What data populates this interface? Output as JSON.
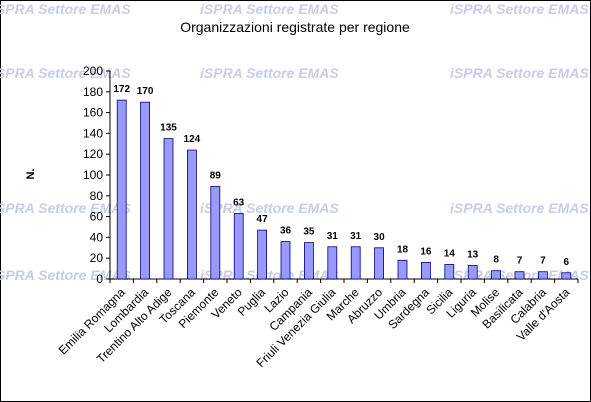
{
  "watermark": "iSPRA Settore EMAS",
  "colors": {
    "bar_fill": "#9999ff",
    "bar_stroke": "#000080",
    "axis": "#000000",
    "watermark": "#c7cde6"
  },
  "chart_data": {
    "type": "bar",
    "title": "Organizzazioni registrate per regione",
    "xlabel": "",
    "ylabel": "N.",
    "ylim": [
      0,
      200
    ],
    "yticks": [
      0,
      20,
      40,
      60,
      80,
      100,
      120,
      140,
      160,
      180,
      200
    ],
    "grid": false,
    "categories": [
      "Emilia Romagna",
      "Lombardia",
      "Trentino Alto Adige",
      "Toscana",
      "Piemonte",
      "Veneto",
      "Puglia",
      "Lazio",
      "Campania",
      "Friuli Venezia Giulia",
      "Marche",
      "Abruzzo",
      "Umbria",
      "Sardegna",
      "Sicilia",
      "Liguria",
      "Molise",
      "Basilicata",
      "Calabria",
      "Valle d'Aosta"
    ],
    "values": [
      172,
      170,
      135,
      124,
      89,
      63,
      47,
      36,
      35,
      31,
      31,
      30,
      18,
      16,
      14,
      13,
      8,
      7,
      7,
      6
    ]
  }
}
